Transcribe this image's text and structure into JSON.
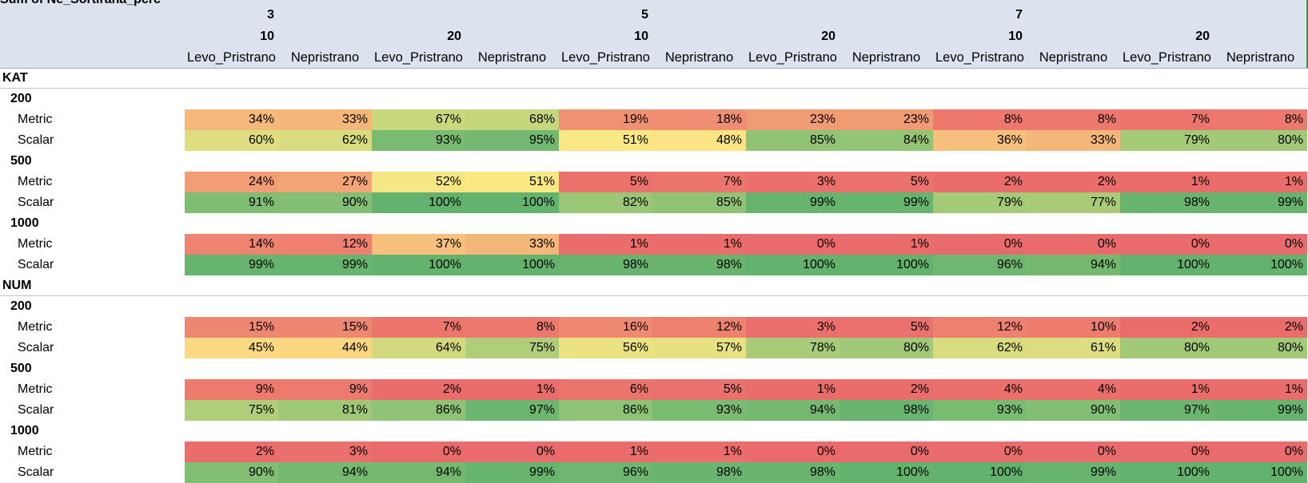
{
  "sheet": {
    "title": "Sum of Ne_Sortirana_pcrc",
    "k_values": [
      "3",
      "5",
      "7"
    ],
    "n_values": [
      "10",
      "20"
    ],
    "col_labels": [
      "Levo_Pristrano",
      "Nepristrano"
    ],
    "rows_label": "KAT",
    "colors": {
      "header_bg": "#dce3ee",
      "red": "#ea6b6b",
      "yellow": "#fde985",
      "green": "#63b36e"
    }
  },
  "groups": [
    {
      "label": "KAT",
      "sizes": [
        {
          "label": "200",
          "rows": [
            {
              "label": "Metric",
              "values": [
                34,
                33,
                67,
                68,
                19,
                18,
                23,
                23,
                8,
                8,
                7,
                8
              ]
            },
            {
              "label": "Scalar",
              "values": [
                60,
                62,
                93,
                95,
                51,
                48,
                85,
                84,
                36,
                33,
                79,
                80
              ]
            }
          ]
        },
        {
          "label": "500",
          "rows": [
            {
              "label": "Metric",
              "values": [
                24,
                27,
                52,
                51,
                5,
                7,
                3,
                5,
                2,
                2,
                1,
                1
              ]
            },
            {
              "label": "Scalar",
              "values": [
                91,
                90,
                100,
                100,
                82,
                85,
                99,
                99,
                79,
                77,
                98,
                99
              ]
            }
          ]
        },
        {
          "label": "1000",
          "rows": [
            {
              "label": "Metric",
              "values": [
                14,
                12,
                37,
                33,
                1,
                1,
                0,
                1,
                0,
                0,
                0,
                0
              ]
            },
            {
              "label": "Scalar",
              "values": [
                99,
                99,
                100,
                100,
                98,
                98,
                100,
                100,
                96,
                94,
                100,
                100
              ]
            }
          ]
        }
      ]
    },
    {
      "label": "NUM",
      "sizes": [
        {
          "label": "200",
          "rows": [
            {
              "label": "Metric",
              "values": [
                15,
                15,
                7,
                8,
                16,
                12,
                3,
                5,
                12,
                10,
                2,
                2
              ]
            },
            {
              "label": "Scalar",
              "values": [
                45,
                44,
                64,
                75,
                56,
                57,
                78,
                80,
                62,
                61,
                80,
                80
              ]
            }
          ]
        },
        {
          "label": "500",
          "rows": [
            {
              "label": "Metric",
              "values": [
                9,
                9,
                2,
                1,
                6,
                5,
                1,
                2,
                4,
                4,
                1,
                1
              ]
            },
            {
              "label": "Scalar",
              "values": [
                75,
                81,
                86,
                97,
                86,
                93,
                94,
                98,
                93,
                90,
                97,
                99
              ]
            }
          ]
        },
        {
          "label": "1000",
          "rows": [
            {
              "label": "Metric",
              "values": [
                2,
                3,
                0,
                0,
                1,
                1,
                0,
                0,
                0,
                0,
                0,
                0
              ]
            },
            {
              "label": "Scalar",
              "values": [
                90,
                94,
                94,
                99,
                96,
                98,
                98,
                100,
                100,
                99,
                100,
                100
              ]
            }
          ]
        }
      ]
    }
  ]
}
